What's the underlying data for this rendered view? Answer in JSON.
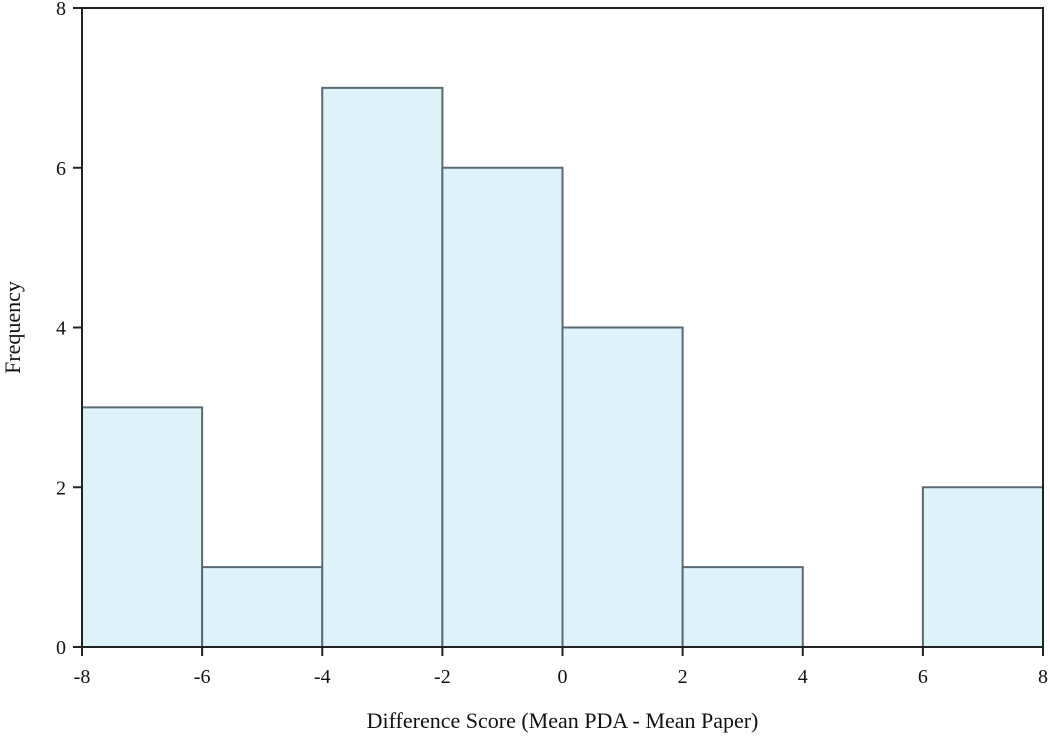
{
  "chart_data": {
    "type": "bar",
    "subtype": "histogram",
    "bins": [
      {
        "x0": -8,
        "x1": -6,
        "count": 3
      },
      {
        "x0": -6,
        "x1": -4,
        "count": 1
      },
      {
        "x0": -4,
        "x1": -2,
        "count": 7
      },
      {
        "x0": -2,
        "x1": 0,
        "count": 6
      },
      {
        "x0": 0,
        "x1": 2,
        "count": 4
      },
      {
        "x0": 2,
        "x1": 4,
        "count": 1
      },
      {
        "x0": 4,
        "x1": 6,
        "count": 0
      },
      {
        "x0": 6,
        "x1": 8,
        "count": 2
      }
    ],
    "title": "",
    "xlabel": "Difference Score (Mean PDA - Mean Paper)",
    "ylabel": "Frequency",
    "xlim": [
      -8,
      8
    ],
    "ylim": [
      0,
      8
    ],
    "xticks": [
      "-8",
      "-6",
      "-4",
      "-2",
      "0",
      "2",
      "4",
      "6",
      "8"
    ],
    "yticks": [
      "0",
      "2",
      "4",
      "6",
      "8"
    ],
    "grid": false,
    "colors": {
      "bar_fill": "#dcf3f9",
      "bar_stroke": "#5a6a72",
      "axis": "#222222"
    }
  }
}
